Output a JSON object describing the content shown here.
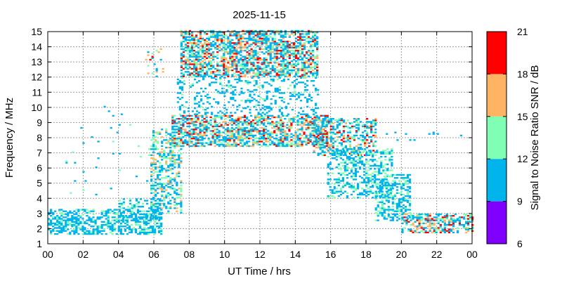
{
  "chart_data": {
    "type": "heatmap",
    "title": "2025-11-15",
    "xlabel": "UT Time / hrs",
    "ylabel": "Frequency / MHz",
    "xlim": [
      0,
      24
    ],
    "ylim": [
      1,
      15
    ],
    "xticks": [
      "00",
      "02",
      "04",
      "06",
      "08",
      "10",
      "12",
      "14",
      "16",
      "18",
      "20",
      "22",
      "00"
    ],
    "yticks": [
      "1",
      "2",
      "3",
      "4",
      "5",
      "6",
      "7",
      "8",
      "9",
      "10",
      "11",
      "12",
      "13",
      "14",
      "15"
    ],
    "grid": true,
    "colorbar": {
      "label": "Signal to Noise Ratio SNR / dB",
      "range": [
        6,
        21
      ],
      "ticks": [
        "6",
        "9",
        "12",
        "15",
        "18",
        "21"
      ],
      "bands": [
        {
          "from": 6,
          "to": 9,
          "color": "#8000ff"
        },
        {
          "from": 9,
          "to": 12,
          "color": "#00b4eb"
        },
        {
          "from": 12,
          "to": 15,
          "color": "#80ffb4"
        },
        {
          "from": 15,
          "to": 18,
          "color": "#ffb464"
        },
        {
          "from": 18,
          "to": 21,
          "color": "#ff0000"
        }
      ]
    },
    "regions": [
      {
        "t0": 0.0,
        "t1": 6.4,
        "f0": 1.6,
        "f1": 3.3,
        "density": 0.55,
        "snr": [
          9,
          14
        ]
      },
      {
        "t0": 4.0,
        "t1": 6.4,
        "f0": 2.5,
        "f1": 4.0,
        "density": 0.35,
        "snr": [
          9,
          14
        ]
      },
      {
        "t0": 5.8,
        "t1": 7.5,
        "f0": 3.0,
        "f1": 8.5,
        "density": 0.45,
        "snr": [
          9,
          18
        ]
      },
      {
        "t0": 7.0,
        "t1": 15.8,
        "f0": 7.4,
        "f1": 9.4,
        "density": 0.6,
        "snr": [
          9,
          21
        ]
      },
      {
        "t0": 7.3,
        "t1": 15.3,
        "f0": 9.5,
        "f1": 12.0,
        "density": 0.2,
        "snr": [
          9,
          13
        ]
      },
      {
        "t0": 7.5,
        "t1": 15.2,
        "f0": 12.0,
        "f1": 15.0,
        "density": 0.62,
        "snr": [
          9,
          21
        ]
      },
      {
        "t0": 15.0,
        "t1": 18.5,
        "f0": 6.8,
        "f1": 9.2,
        "density": 0.45,
        "snr": [
          9,
          21
        ]
      },
      {
        "t0": 15.8,
        "t1": 19.5,
        "f0": 4.0,
        "f1": 7.2,
        "density": 0.4,
        "snr": [
          9,
          15
        ]
      },
      {
        "t0": 18.5,
        "t1": 20.5,
        "f0": 2.5,
        "f1": 5.5,
        "density": 0.45,
        "snr": [
          9,
          15
        ]
      },
      {
        "t0": 20.0,
        "t1": 24.0,
        "f0": 1.7,
        "f1": 3.0,
        "density": 0.5,
        "snr": [
          9,
          21
        ]
      },
      {
        "t0": 5.5,
        "t1": 6.5,
        "f0": 12.0,
        "f1": 14.0,
        "density": 0.12,
        "snr": [
          9,
          21
        ]
      },
      {
        "t0": 19.0,
        "t1": 23.5,
        "f0": 7.8,
        "f1": 8.3,
        "density": 0.08,
        "snr": [
          9,
          12
        ]
      },
      {
        "t0": 1.0,
        "t1": 6.0,
        "f0": 4.0,
        "f1": 10.0,
        "density": 0.015,
        "snr": [
          9,
          15
        ]
      }
    ]
  }
}
